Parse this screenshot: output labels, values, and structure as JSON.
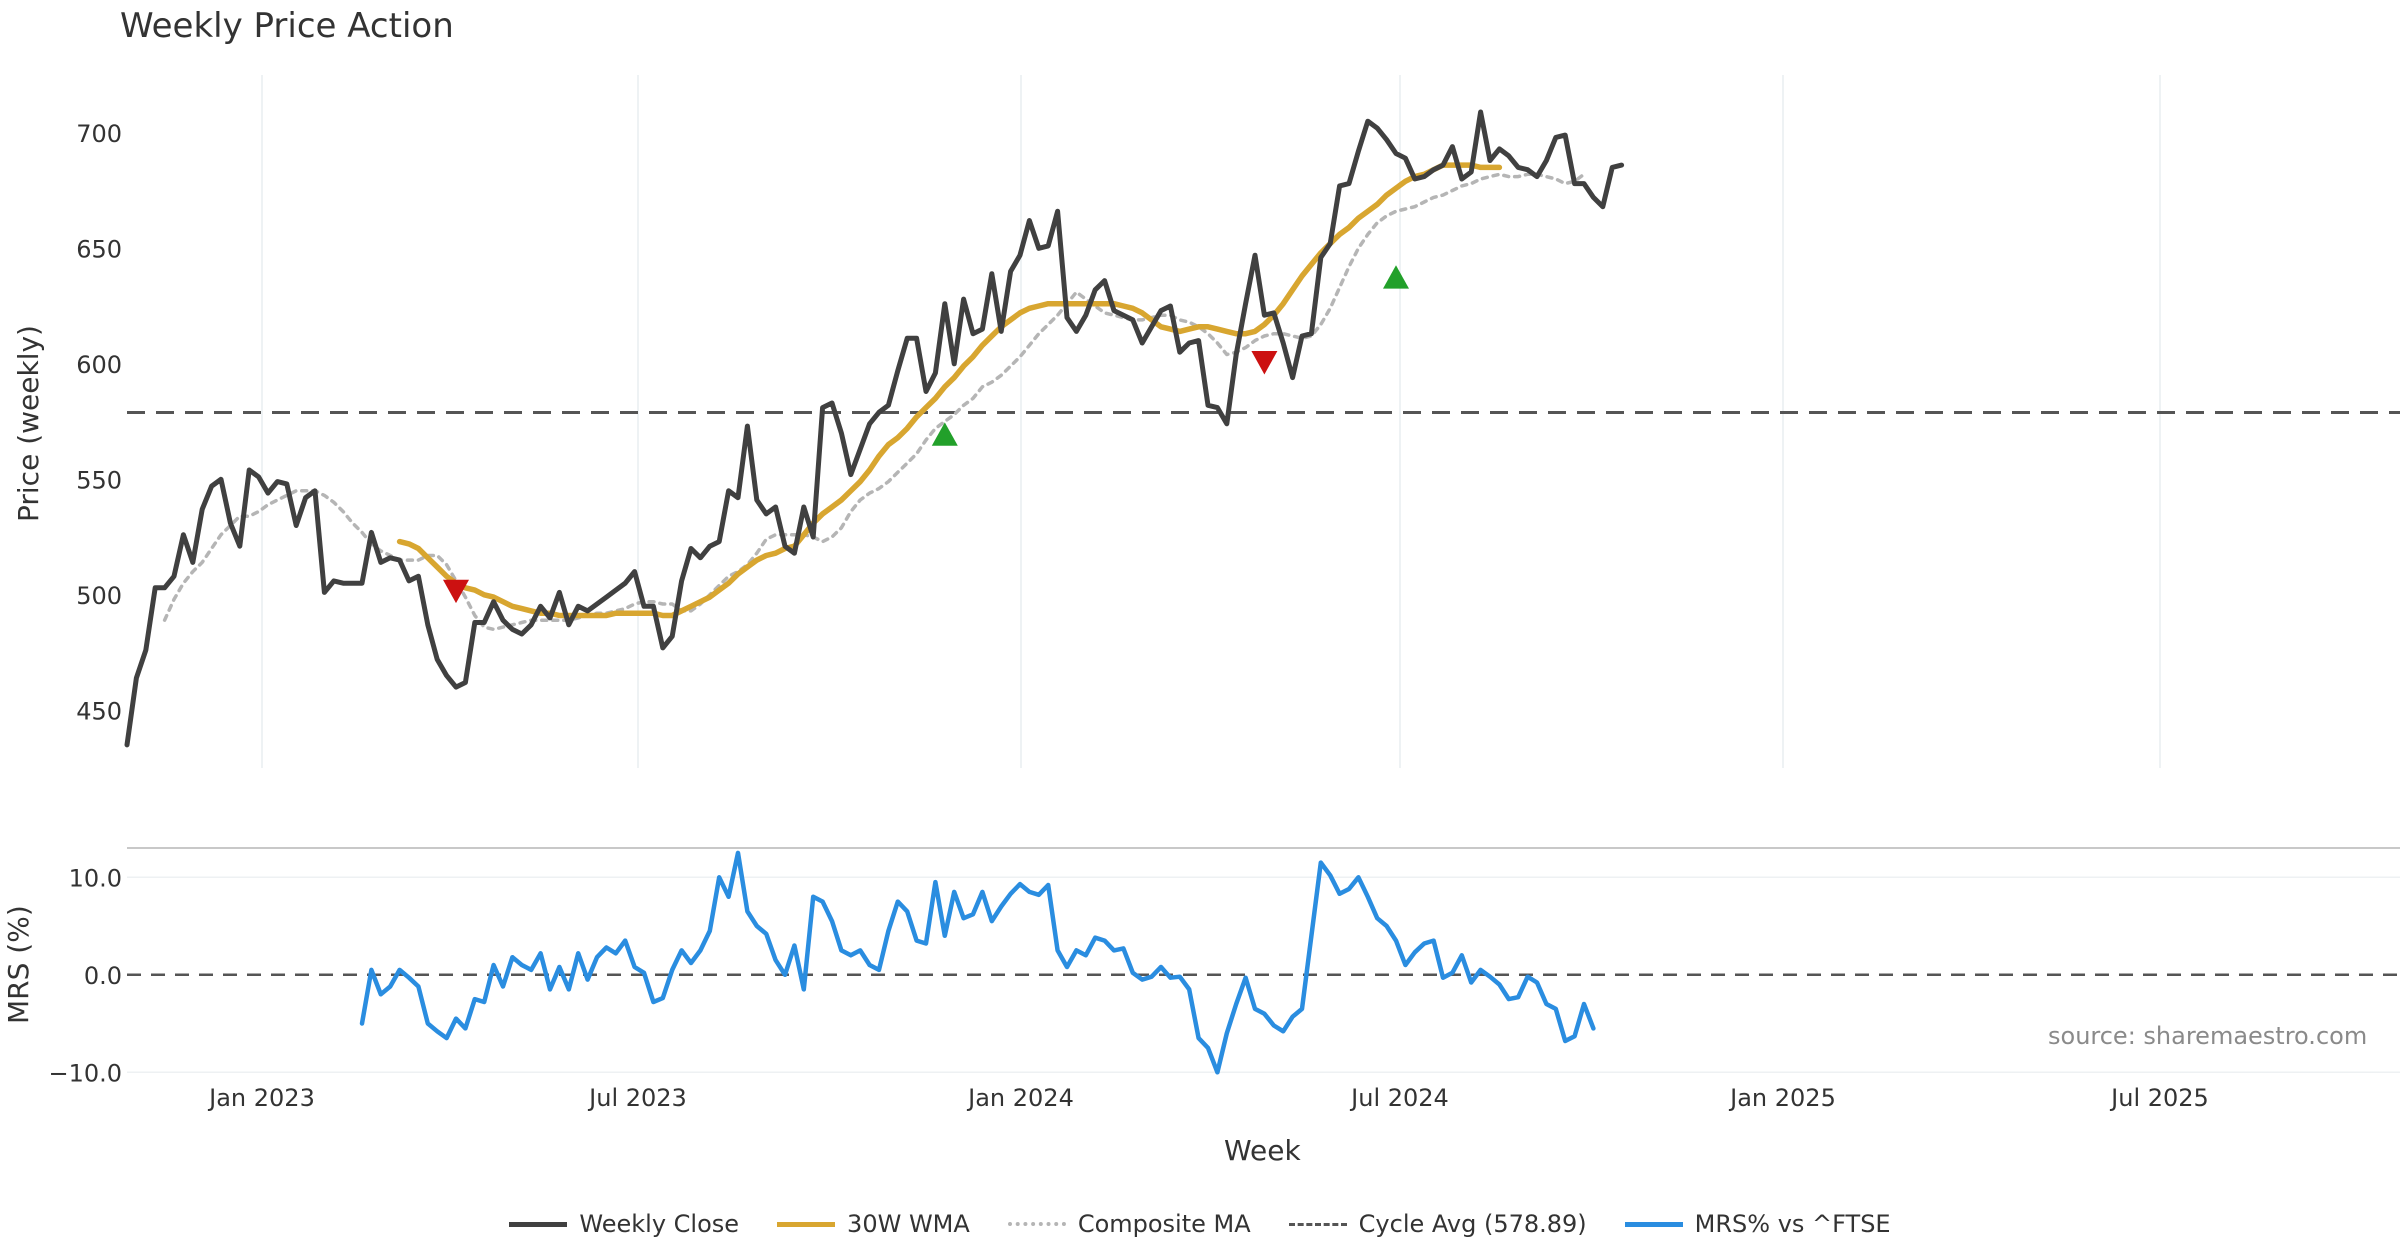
{
  "chart_data": {
    "type": "line",
    "title": "Weekly Price Action",
    "xlabel": "Week",
    "source": "source: sharemaestro.com",
    "x_ticks": [
      "Jan 2023",
      "Jul 2023",
      "Jan 2024",
      "Jul 2024",
      "Jan 2025",
      "Jul 2025"
    ],
    "price_panel": {
      "ylabel": "Price (weekly)",
      "ylim": [
        425,
        725
      ],
      "y_ticks": [
        450,
        500,
        550,
        600,
        650,
        700
      ],
      "cycle_avg": 578.89,
      "series": [
        {
          "name": "Weekly Close",
          "color": "#404040",
          "values": [
            435,
            464,
            476,
            503,
            503,
            508,
            526,
            514,
            537,
            547,
            550,
            531,
            521,
            554,
            551,
            544,
            549,
            548,
            530,
            542,
            545,
            501,
            506,
            505,
            505,
            505,
            527,
            514,
            516,
            515,
            506,
            508,
            487,
            472,
            465,
            460,
            462,
            488,
            488,
            497,
            489,
            485,
            483,
            487,
            495,
            490,
            501,
            487,
            495,
            493,
            496,
            499,
            502,
            505,
            510,
            495,
            495,
            477,
            482,
            506,
            520,
            516,
            521,
            523,
            545,
            542,
            573,
            541,
            535,
            538,
            521,
            518,
            538,
            525,
            581,
            583,
            570,
            552,
            563,
            574,
            579,
            582,
            597,
            611,
            611,
            588,
            596,
            626,
            600,
            628,
            613,
            615,
            639,
            614,
            640,
            647,
            662,
            650,
            651,
            666,
            620,
            614,
            621,
            632,
            636,
            623,
            621,
            619,
            609,
            616,
            623,
            625,
            605,
            609,
            610,
            582,
            581,
            574,
            604,
            626,
            647,
            621,
            622,
            609,
            594,
            612,
            613,
            646,
            652,
            677,
            678,
            692,
            705,
            702,
            697,
            691,
            689,
            680,
            681,
            684,
            686,
            694,
            680,
            683,
            709,
            688,
            693,
            690,
            685,
            684,
            681,
            688,
            698,
            699,
            678,
            678,
            672,
            668,
            685,
            686
          ]
        },
        {
          "name": "30W WMA",
          "color": "#d8a630",
          "start_index": 29,
          "values": [
            523,
            522,
            520,
            516,
            512,
            508,
            505,
            503,
            502,
            500,
            499,
            497,
            495,
            494,
            493,
            492,
            492,
            491,
            491,
            491,
            491,
            491,
            491,
            492,
            492,
            492,
            492,
            492,
            491,
            491,
            493,
            495,
            497,
            499,
            502,
            505,
            509,
            512,
            515,
            517,
            518,
            520,
            521,
            526,
            531,
            535,
            538,
            541,
            545,
            549,
            554,
            560,
            565,
            568,
            572,
            577,
            581,
            585,
            590,
            594,
            599,
            603,
            608,
            612,
            616,
            619,
            622,
            624,
            625,
            626,
            626,
            626,
            626,
            626,
            626,
            626,
            626,
            625,
            624,
            622,
            619,
            616,
            615,
            614,
            615,
            616,
            616,
            615,
            614,
            613,
            613,
            614,
            617,
            621,
            626,
            632,
            638,
            643,
            648,
            652,
            656,
            659,
            663,
            666,
            669,
            673,
            676,
            679,
            681,
            682,
            684,
            686,
            686,
            686,
            686,
            685,
            685,
            685
          ]
        },
        {
          "name": "Composite MA",
          "color": "#b5b5b5",
          "start_index": 4,
          "values": [
            489,
            498,
            505,
            510,
            514,
            520,
            526,
            530,
            534,
            534,
            536,
            539,
            541,
            543,
            545,
            545,
            545,
            543,
            540,
            536,
            531,
            527,
            522,
            519,
            517,
            515,
            515,
            515,
            517,
            517,
            513,
            506,
            499,
            491,
            486,
            485,
            486,
            487,
            488,
            489,
            489,
            489,
            489,
            489,
            490,
            491,
            492,
            492,
            493,
            494,
            496,
            497,
            497,
            496,
            496,
            493,
            493,
            496,
            500,
            504,
            508,
            510,
            513,
            518,
            524,
            526,
            526,
            526,
            526,
            525,
            523,
            525,
            529,
            536,
            541,
            544,
            546,
            549,
            553,
            557,
            561,
            567,
            572,
            575,
            578,
            582,
            585,
            590,
            592,
            595,
            599,
            603,
            608,
            613,
            617,
            621,
            626,
            631,
            628,
            625,
            622,
            621,
            620,
            619,
            619,
            620,
            621,
            621,
            619,
            618,
            616,
            613,
            609,
            604,
            605,
            607,
            610,
            612,
            613,
            613,
            612,
            611,
            612,
            617,
            624,
            633,
            642,
            650,
            656,
            661,
            664,
            666,
            667,
            668,
            670,
            672,
            673,
            675,
            677,
            678,
            680,
            681,
            682,
            681,
            681,
            682,
            682,
            681,
            680,
            678,
            679,
            682
          ]
        }
      ],
      "markers": [
        {
          "type": "sell",
          "index": 35,
          "value": 502,
          "color": "#cc1111"
        },
        {
          "type": "buy",
          "index": 87,
          "value": 569,
          "color": "#22a02a"
        },
        {
          "type": "sell",
          "index": 121,
          "value": 601,
          "color": "#cc1111"
        },
        {
          "type": "buy",
          "index": 135,
          "value": 637,
          "color": "#22a02a"
        }
      ]
    },
    "mrs_panel": {
      "ylabel": "MRS (%)",
      "ylim": [
        -11,
        13
      ],
      "y_ticks": [
        "10.0",
        "0.0",
        "−10.0"
      ],
      "y_tick_values": [
        10,
        0,
        -10
      ],
      "series": [
        {
          "name": "MRS% vs ^FTSE",
          "color": "#2a8de0",
          "start_index": 25,
          "values": [
            -5.0,
            0.5,
            -2.0,
            -1.2,
            0.5,
            -0.3,
            -1.2,
            -5.0,
            -5.8,
            -6.5,
            -4.5,
            -5.5,
            -2.5,
            -2.8,
            1.0,
            -1.2,
            1.8,
            1.0,
            0.5,
            2.2,
            -1.5,
            0.8,
            -1.5,
            2.2,
            -0.5,
            1.8,
            2.8,
            2.2,
            3.5,
            0.8,
            0.2,
            -2.8,
            -2.4,
            0.5,
            2.5,
            1.2,
            2.5,
            4.5,
            10.0,
            8.0,
            12.5,
            6.5,
            5.0,
            4.2,
            1.5,
            0.0,
            3.0,
            -1.5,
            8.0,
            7.5,
            5.5,
            2.5,
            2.0,
            2.5,
            1.0,
            0.5,
            4.5,
            7.5,
            6.5,
            3.5,
            3.2,
            9.5,
            4.0,
            8.5,
            5.8,
            6.2,
            8.5,
            5.5,
            7.0,
            8.3,
            9.3,
            8.5,
            8.2,
            9.2,
            2.5,
            0.8,
            2.5,
            2.0,
            3.8,
            3.5,
            2.5,
            2.7,
            0.2,
            -0.5,
            -0.2,
            0.8,
            -0.3,
            -0.2,
            -1.5,
            -6.5,
            -7.5,
            -10.0,
            -6.0,
            -3.0,
            -0.3,
            -3.5,
            -4.0,
            -5.2,
            -5.8,
            -4.3,
            -3.5,
            4.0,
            11.5,
            10.2,
            8.3,
            8.8,
            10.0,
            8.0,
            5.8,
            5.0,
            3.5,
            1.0,
            2.3,
            3.2,
            3.5,
            -0.3,
            0.2,
            2.0,
            -0.8,
            0.5,
            -0.2,
            -1.0,
            -2.5,
            -2.3,
            -0.2,
            -0.8,
            -3.0,
            -3.5,
            -6.8,
            -6.3,
            -3.0,
            -5.5
          ]
        }
      ]
    }
  },
  "legend": [
    {
      "label": "Weekly Close",
      "color": "#404040",
      "style": "solid"
    },
    {
      "label": "30W WMA",
      "color": "#d8a630",
      "style": "solid"
    },
    {
      "label": "Composite MA",
      "color": "#b5b5b5",
      "style": "dot"
    },
    {
      "label": "Cycle Avg (578.89)",
      "color": "#555555",
      "style": "dash"
    },
    {
      "label": "MRS% vs ^FTSE",
      "color": "#2a8de0",
      "style": "solid"
    }
  ]
}
